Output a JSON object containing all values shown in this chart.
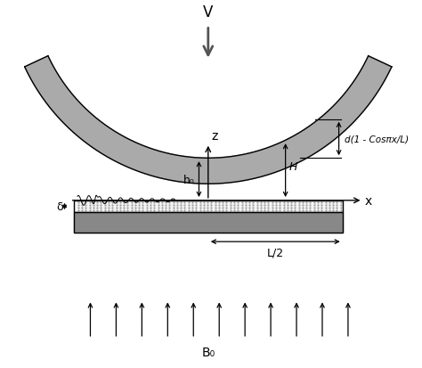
{
  "bg_color": "#ffffff",
  "plate_color": "#aaaaaa",
  "base_color": "#888888",
  "arrow_gray": "#555555",
  "title_label": "V",
  "z_label": "z",
  "x_label": "x",
  "h0_label": "h₀",
  "H_label": "H",
  "d_label": "d(1 - Cosπx/L)",
  "delta_label": "δ",
  "L2_label": "L/2",
  "B0_label": "B₀",
  "figsize": [
    4.74,
    4.14
  ],
  "dpi": 100,
  "xlim": [
    0,
    10
  ],
  "ylim": [
    0,
    10
  ]
}
